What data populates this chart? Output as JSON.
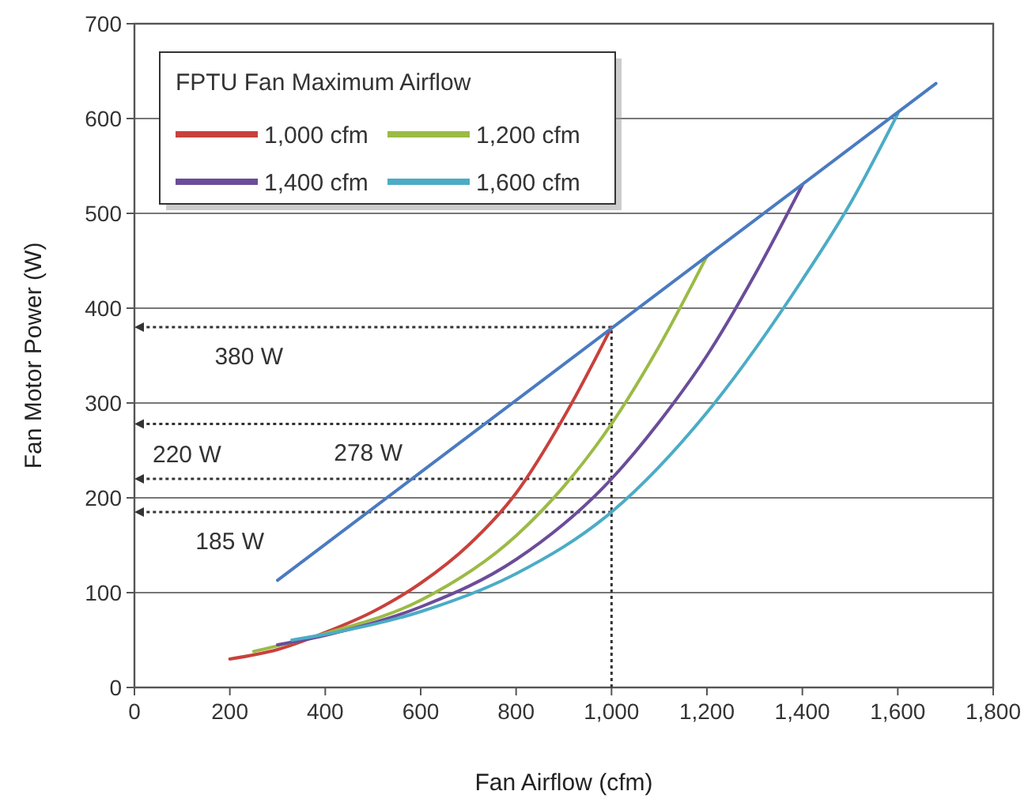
{
  "chart_data": {
    "type": "line",
    "xlabel": "Fan Airflow (cfm)",
    "ylabel": "Fan Motor Power (W)",
    "legend_title": "FPTU Fan Maximum Airflow",
    "legend": "top left",
    "grid": "y",
    "line_style": "solid",
    "marker": "none",
    "xlim": [
      0,
      1800
    ],
    "ylim": [
      0,
      700
    ],
    "xticks": [
      0,
      200,
      400,
      600,
      800,
      {
        "value": 1000,
        "label": "1,000"
      },
      {
        "value": 1200,
        "label": "1,200"
      },
      {
        "value": 1400,
        "label": "1,400"
      },
      {
        "value": 1600,
        "label": "1,600"
      },
      {
        "value": 1800,
        "label": "1,800"
      }
    ],
    "yticks": [
      0,
      100,
      200,
      300,
      400,
      500,
      600,
      700
    ],
    "series": [
      {
        "name": "1,000 cfm",
        "color": "#c8413c",
        "x": [
          200,
          300,
          400,
          500,
          600,
          700,
          800,
          900,
          1000
        ],
        "values": [
          30,
          40,
          58,
          80,
          110,
          150,
          205,
          285,
          380
        ]
      },
      {
        "name": "1,200 cfm",
        "color": "#9bbb45",
        "x": [
          250,
          400,
          600,
          800,
          900,
          1000,
          1100,
          1200
        ],
        "values": [
          38,
          57,
          92,
          160,
          212,
          278,
          360,
          455
        ]
      },
      {
        "name": "1,400 cfm",
        "color": "#6b4c9a",
        "x": [
          300,
          400,
          600,
          800,
          1000,
          1100,
          1200,
          1300,
          1400
        ],
        "values": [
          45,
          55,
          85,
          135,
          220,
          280,
          350,
          435,
          530
        ]
      },
      {
        "name": "1,600 cfm",
        "color": "#4bacc6",
        "x": [
          330,
          400,
          600,
          800,
          1000,
          1200,
          1400,
          1500,
          1600
        ],
        "values": [
          50,
          56,
          80,
          120,
          185,
          290,
          430,
          510,
          605
        ]
      },
      {
        "color": "#4a7bc0",
        "x": [
          300,
          1680
        ],
        "values": [
          113,
          637
        ]
      }
    ],
    "ref_lines": [
      {
        "axis": "x",
        "value": 1000,
        "line_style": "dotted"
      },
      {
        "axis": "y",
        "value": 380,
        "line_style": "dotted",
        "label": "380 W"
      },
      {
        "axis": "y",
        "value": 278,
        "line_style": "dotted",
        "label": "278 W"
      },
      {
        "axis": "y",
        "value": 220,
        "line_style": "dotted",
        "label": "220 W"
      },
      {
        "axis": "y",
        "value": 185,
        "line_style": "dotted",
        "label": "185 W"
      }
    ]
  }
}
